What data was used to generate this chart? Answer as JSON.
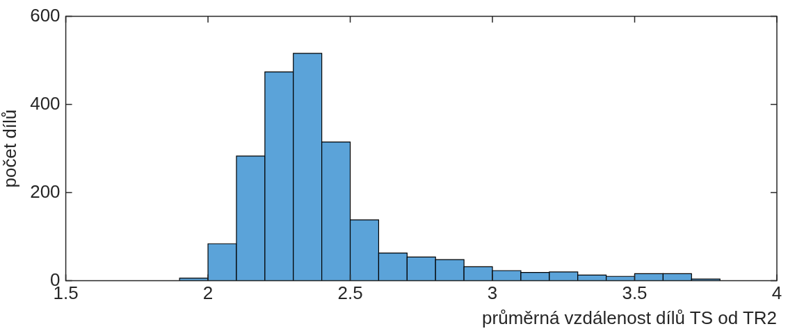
{
  "chart_data": {
    "type": "histogram",
    "xlabel": "průměrná vzdálenost dílů TS od TR2",
    "ylabel": "počet dílů",
    "bins": [
      1.9,
      2.0,
      2.1,
      2.2,
      2.3,
      2.4,
      2.5,
      2.6,
      2.7,
      2.8,
      2.9,
      3.0,
      3.1,
      3.2,
      3.3,
      3.4,
      3.5,
      3.6,
      3.7,
      3.8
    ],
    "values": [
      6,
      84,
      283,
      474,
      516,
      315,
      138,
      63,
      54,
      48,
      32,
      23,
      19,
      20,
      13,
      10,
      16,
      16,
      4
    ],
    "color": "#5ba3d9",
    "xlim": [
      1.5,
      4
    ],
    "xticks": [
      1.5,
      2,
      2.5,
      3,
      3.5,
      4
    ],
    "ylim": [
      0,
      600
    ],
    "yticks": [
      0,
      200,
      400,
      600
    ],
    "grid": false
  }
}
